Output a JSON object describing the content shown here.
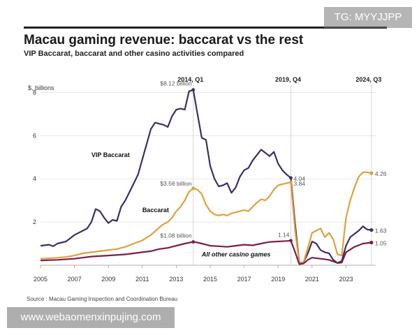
{
  "title": "Macau gaming revenue: baccarat vs the rest",
  "subtitle": "VIP Baccarat, baccarat and other casino activities compared",
  "source": "Source : Macau Gaming Inspection and Coordination Bureau",
  "watermarks": {
    "top": "TG: MYYJJPP",
    "bottom": "www.webaomenxinpujing.com"
  },
  "colors": {
    "vip": "#3f2d6b",
    "baccarat": "#e0a13a",
    "other": "#7a1f49",
    "grid": "#dddddd",
    "text": "#333333"
  },
  "chart_data": {
    "type": "line",
    "ylabel": "$, billions",
    "ylim": [
      0,
      8.4
    ],
    "xlim": [
      2005,
      2024.75
    ],
    "yticks": [
      2,
      4,
      6,
      8
    ],
    "xticks": [
      2005,
      2007,
      2009,
      2011,
      2013,
      2015,
      2017,
      2019,
      2021,
      2023
    ],
    "xtick_labels": [
      "2005",
      "2007",
      "2009",
      "2011",
      "2013",
      "2015",
      "2017",
      "2019",
      "2021",
      "2023"
    ],
    "markers": [
      {
        "x": 2014.0,
        "label": "2014, Q1"
      },
      {
        "x": 2019.75,
        "label": "2019, Q4"
      },
      {
        "x": 2024.5,
        "label": "2024, Q3"
      }
    ],
    "series": [
      {
        "key": "vip",
        "name": "VIP Baccarat",
        "points": [
          [
            2005,
            0.9
          ],
          [
            2005.5,
            0.95
          ],
          [
            2005.75,
            0.88
          ],
          [
            2006,
            1.0
          ],
          [
            2006.5,
            1.1
          ],
          [
            2007,
            1.4
          ],
          [
            2007.5,
            1.6
          ],
          [
            2007.75,
            1.7
          ],
          [
            2008,
            2.0
          ],
          [
            2008.25,
            2.6
          ],
          [
            2008.5,
            2.5
          ],
          [
            2008.75,
            2.2
          ],
          [
            2009,
            1.95
          ],
          [
            2009.25,
            2.1
          ],
          [
            2009.5,
            2.05
          ],
          [
            2009.75,
            2.7
          ],
          [
            2010,
            3.0
          ],
          [
            2010.25,
            3.4
          ],
          [
            2010.5,
            3.8
          ],
          [
            2010.75,
            4.2
          ],
          [
            2011,
            4.9
          ],
          [
            2011.25,
            5.6
          ],
          [
            2011.5,
            6.3
          ],
          [
            2011.75,
            6.6
          ],
          [
            2012,
            6.55
          ],
          [
            2012.25,
            6.5
          ],
          [
            2012.5,
            6.4
          ],
          [
            2012.75,
            6.9
          ],
          [
            2013,
            7.2
          ],
          [
            2013.25,
            7.25
          ],
          [
            2013.5,
            7.2
          ],
          [
            2013.75,
            8.05
          ],
          [
            2014,
            8.12
          ],
          [
            2014.25,
            7.0
          ],
          [
            2014.5,
            5.9
          ],
          [
            2014.75,
            5.8
          ],
          [
            2015,
            4.6
          ],
          [
            2015.25,
            4.0
          ],
          [
            2015.5,
            3.65
          ],
          [
            2015.75,
            3.7
          ],
          [
            2016,
            3.8
          ],
          [
            2016.25,
            3.35
          ],
          [
            2016.5,
            3.6
          ],
          [
            2016.75,
            4.1
          ],
          [
            2017,
            4.4
          ],
          [
            2017.25,
            4.5
          ],
          [
            2017.5,
            4.85
          ],
          [
            2017.75,
            5.1
          ],
          [
            2018,
            5.35
          ],
          [
            2018.25,
            5.2
          ],
          [
            2018.5,
            5.05
          ],
          [
            2018.75,
            5.25
          ],
          [
            2019,
            4.7
          ],
          [
            2019.25,
            4.4
          ],
          [
            2019.5,
            4.2
          ],
          [
            2019.75,
            4.04
          ],
          [
            2020,
            1.9
          ],
          [
            2020.25,
            0.1
          ],
          [
            2020.5,
            0.15
          ],
          [
            2020.75,
            0.55
          ],
          [
            2021,
            1.1
          ],
          [
            2021.25,
            1.0
          ],
          [
            2021.5,
            0.7
          ],
          [
            2021.75,
            0.6
          ],
          [
            2022,
            0.55
          ],
          [
            2022.25,
            0.25
          ],
          [
            2022.5,
            0.1
          ],
          [
            2022.75,
            0.2
          ],
          [
            2023,
            0.9
          ],
          [
            2023.25,
            1.3
          ],
          [
            2023.5,
            1.45
          ],
          [
            2023.75,
            1.6
          ],
          [
            2024,
            1.8
          ],
          [
            2024.25,
            1.65
          ],
          [
            2024.5,
            1.63
          ]
        ]
      },
      {
        "key": "baccarat",
        "name": "Baccarat",
        "points": [
          [
            2005,
            0.3
          ],
          [
            2005.5,
            0.32
          ],
          [
            2006,
            0.35
          ],
          [
            2006.5,
            0.38
          ],
          [
            2007,
            0.45
          ],
          [
            2007.5,
            0.55
          ],
          [
            2008,
            0.6
          ],
          [
            2008.5,
            0.65
          ],
          [
            2009,
            0.7
          ],
          [
            2009.5,
            0.75
          ],
          [
            2010,
            0.85
          ],
          [
            2010.5,
            1.0
          ],
          [
            2011,
            1.15
          ],
          [
            2011.5,
            1.4
          ],
          [
            2012,
            1.75
          ],
          [
            2012.25,
            1.9
          ],
          [
            2012.5,
            2.0
          ],
          [
            2012.75,
            2.2
          ],
          [
            2013,
            2.5
          ],
          [
            2013.25,
            2.7
          ],
          [
            2013.5,
            3.0
          ],
          [
            2013.75,
            3.4
          ],
          [
            2014,
            3.56
          ],
          [
            2014.25,
            3.5
          ],
          [
            2014.5,
            3.3
          ],
          [
            2014.75,
            2.8
          ],
          [
            2015,
            2.5
          ],
          [
            2015.25,
            2.35
          ],
          [
            2015.5,
            2.3
          ],
          [
            2015.75,
            2.35
          ],
          [
            2016,
            2.3
          ],
          [
            2016.25,
            2.4
          ],
          [
            2016.5,
            2.45
          ],
          [
            2016.75,
            2.5
          ],
          [
            2017,
            2.55
          ],
          [
            2017.25,
            2.5
          ],
          [
            2017.5,
            2.7
          ],
          [
            2017.75,
            2.9
          ],
          [
            2018,
            3.05
          ],
          [
            2018.25,
            3.0
          ],
          [
            2018.5,
            3.2
          ],
          [
            2018.75,
            3.5
          ],
          [
            2019,
            3.7
          ],
          [
            2019.25,
            3.75
          ],
          [
            2019.5,
            3.8
          ],
          [
            2019.75,
            3.84
          ],
          [
            2020,
            1.6
          ],
          [
            2020.25,
            0.08
          ],
          [
            2020.5,
            0.15
          ],
          [
            2020.75,
            0.8
          ],
          [
            2021,
            1.5
          ],
          [
            2021.25,
            1.6
          ],
          [
            2021.5,
            1.7
          ],
          [
            2021.75,
            1.3
          ],
          [
            2022,
            1.5
          ],
          [
            2022.25,
            1.2
          ],
          [
            2022.5,
            0.5
          ],
          [
            2022.75,
            0.45
          ],
          [
            2023,
            2.2
          ],
          [
            2023.25,
            3.0
          ],
          [
            2023.5,
            3.6
          ],
          [
            2023.75,
            4.1
          ],
          [
            2024,
            4.3
          ],
          [
            2024.25,
            4.3
          ],
          [
            2024.5,
            4.26
          ]
        ]
      },
      {
        "key": "other",
        "name": "All other casino games",
        "points": [
          [
            2005,
            0.22
          ],
          [
            2006,
            0.25
          ],
          [
            2007,
            0.3
          ],
          [
            2008,
            0.4
          ],
          [
            2009,
            0.45
          ],
          [
            2010,
            0.5
          ],
          [
            2011,
            0.6
          ],
          [
            2011.5,
            0.65
          ],
          [
            2012,
            0.75
          ],
          [
            2012.5,
            0.8
          ],
          [
            2013,
            0.9
          ],
          [
            2013.5,
            1.0
          ],
          [
            2014,
            1.08
          ],
          [
            2014.25,
            1.05
          ],
          [
            2014.5,
            1.0
          ],
          [
            2015,
            0.9
          ],
          [
            2015.5,
            0.88
          ],
          [
            2016,
            0.85
          ],
          [
            2016.5,
            0.9
          ],
          [
            2017,
            0.95
          ],
          [
            2017.5,
            0.92
          ],
          [
            2018,
            1.0
          ],
          [
            2018.5,
            1.08
          ],
          [
            2019,
            1.1
          ],
          [
            2019.5,
            1.12
          ],
          [
            2019.75,
            1.14
          ],
          [
            2020,
            0.6
          ],
          [
            2020.25,
            0.05
          ],
          [
            2020.5,
            0.08
          ],
          [
            2020.75,
            0.25
          ],
          [
            2021,
            0.35
          ],
          [
            2021.5,
            0.3
          ],
          [
            2022,
            0.25
          ],
          [
            2022.5,
            0.1
          ],
          [
            2022.75,
            0.12
          ],
          [
            2023,
            0.6
          ],
          [
            2023.5,
            0.85
          ],
          [
            2024,
            1.0
          ],
          [
            2024.5,
            1.05
          ]
        ]
      }
    ],
    "annotations": [
      {
        "x": 2014.0,
        "y": 8.12,
        "text": "$8.12 billion",
        "color": "#555555",
        "anchor": "end",
        "dx": -2,
        "dy": -6
      },
      {
        "x": 2014.0,
        "y": 3.56,
        "text": "$3.56 billion",
        "color": "#555555",
        "anchor": "end",
        "dx": -2,
        "dy": -4
      },
      {
        "x": 2014.0,
        "y": 1.08,
        "text": "$1.08 billion",
        "color": "#555555",
        "anchor": "end",
        "dx": -2,
        "dy": -6
      },
      {
        "x": 2019.75,
        "y": 4.04,
        "text": "4.04",
        "color": "#555555",
        "anchor": "start",
        "dx": 4,
        "dy": 4
      },
      {
        "x": 2019.75,
        "y": 3.84,
        "text": "3.84",
        "color": "#555555",
        "anchor": "start",
        "dx": 4,
        "dy": 5
      },
      {
        "x": 2019.75,
        "y": 1.14,
        "text": "1.14",
        "color": "#555555",
        "anchor": "end",
        "dx": -2,
        "dy": -5
      },
      {
        "x": 2024.5,
        "y": 4.26,
        "text": "4.26",
        "color": "#555555",
        "anchor": "start",
        "dx": 5,
        "dy": 4
      },
      {
        "x": 2024.5,
        "y": 1.63,
        "text": "1.63",
        "color": "#555555",
        "anchor": "start",
        "dx": 5,
        "dy": 4
      },
      {
        "x": 2024.5,
        "y": 1.05,
        "text": "1.05",
        "color": "#555555",
        "anchor": "start",
        "dx": 5,
        "dy": 4
      }
    ],
    "series_labels": [
      {
        "text": "VIP Baccarat",
        "x": 2008.0,
        "y": 5.0,
        "bold": true,
        "italic": false,
        "color": "#111111"
      },
      {
        "text": "Baccarat",
        "x": 2011.0,
        "y": 2.45,
        "bold": true,
        "italic": false,
        "color": "#111111"
      },
      {
        "text": "All other casino games",
        "x": 2014.5,
        "y": 0.4,
        "bold": true,
        "italic": true,
        "color": "#111111"
      }
    ]
  }
}
